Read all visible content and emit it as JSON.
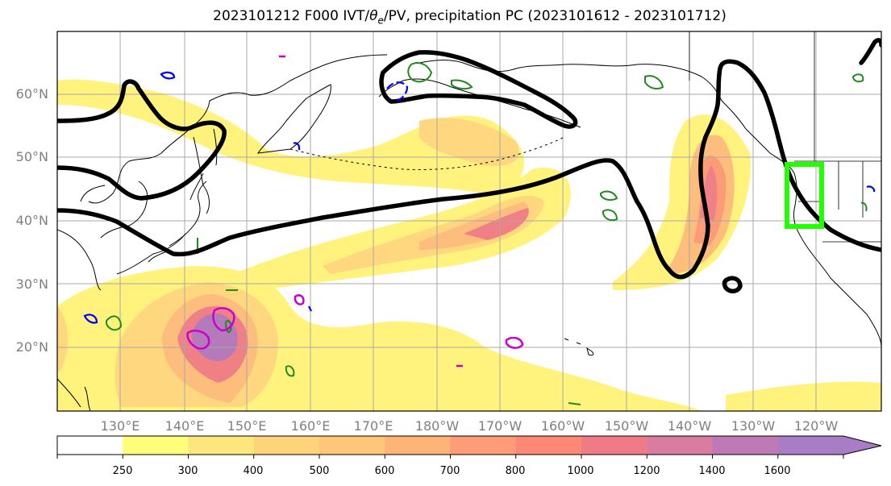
{
  "title": {
    "prefix": "2023101212 F000 IVT/",
    "theta": "θ",
    "theta_sub": "e",
    "suffix": "/PV, precipitation PC (2023101612 - 2023101712)"
  },
  "lat_labels": [
    "60°N",
    "50°N",
    "40°N",
    "30°N",
    "20°N"
  ],
  "lon_labels": [
    "130°E",
    "140°E",
    "150°E",
    "160°E",
    "170°E",
    "180°W",
    "170°W",
    "160°W",
    "150°W",
    "140°W",
    "130°W",
    "120°W"
  ],
  "colorbar": {
    "levels": [
      "250",
      "300",
      "400",
      "500",
      "600",
      "700",
      "800",
      "1000",
      "1200",
      "1400",
      "1600"
    ],
    "colors": [
      "#ffffff",
      "#fefe7a",
      "#fde67c",
      "#fdd47a",
      "#fdc678",
      "#fdb476",
      "#fd9c76",
      "#fd8876",
      "#ee7b86",
      "#d97ca0",
      "#bd7ab6",
      "#a97cc6"
    ]
  },
  "colors": {
    "ivt_fill": [
      "#fff27d",
      "#fed77e",
      "#fdbd7d",
      "#fb9b78",
      "#ef8086",
      "#b47ab9"
    ],
    "pv_contour": "#000000",
    "theta_contour": "#1f8b1f",
    "neg_contour": "#0000ff",
    "pos_contour": "#cc00cc",
    "target_box": "#22ff00"
  }
}
